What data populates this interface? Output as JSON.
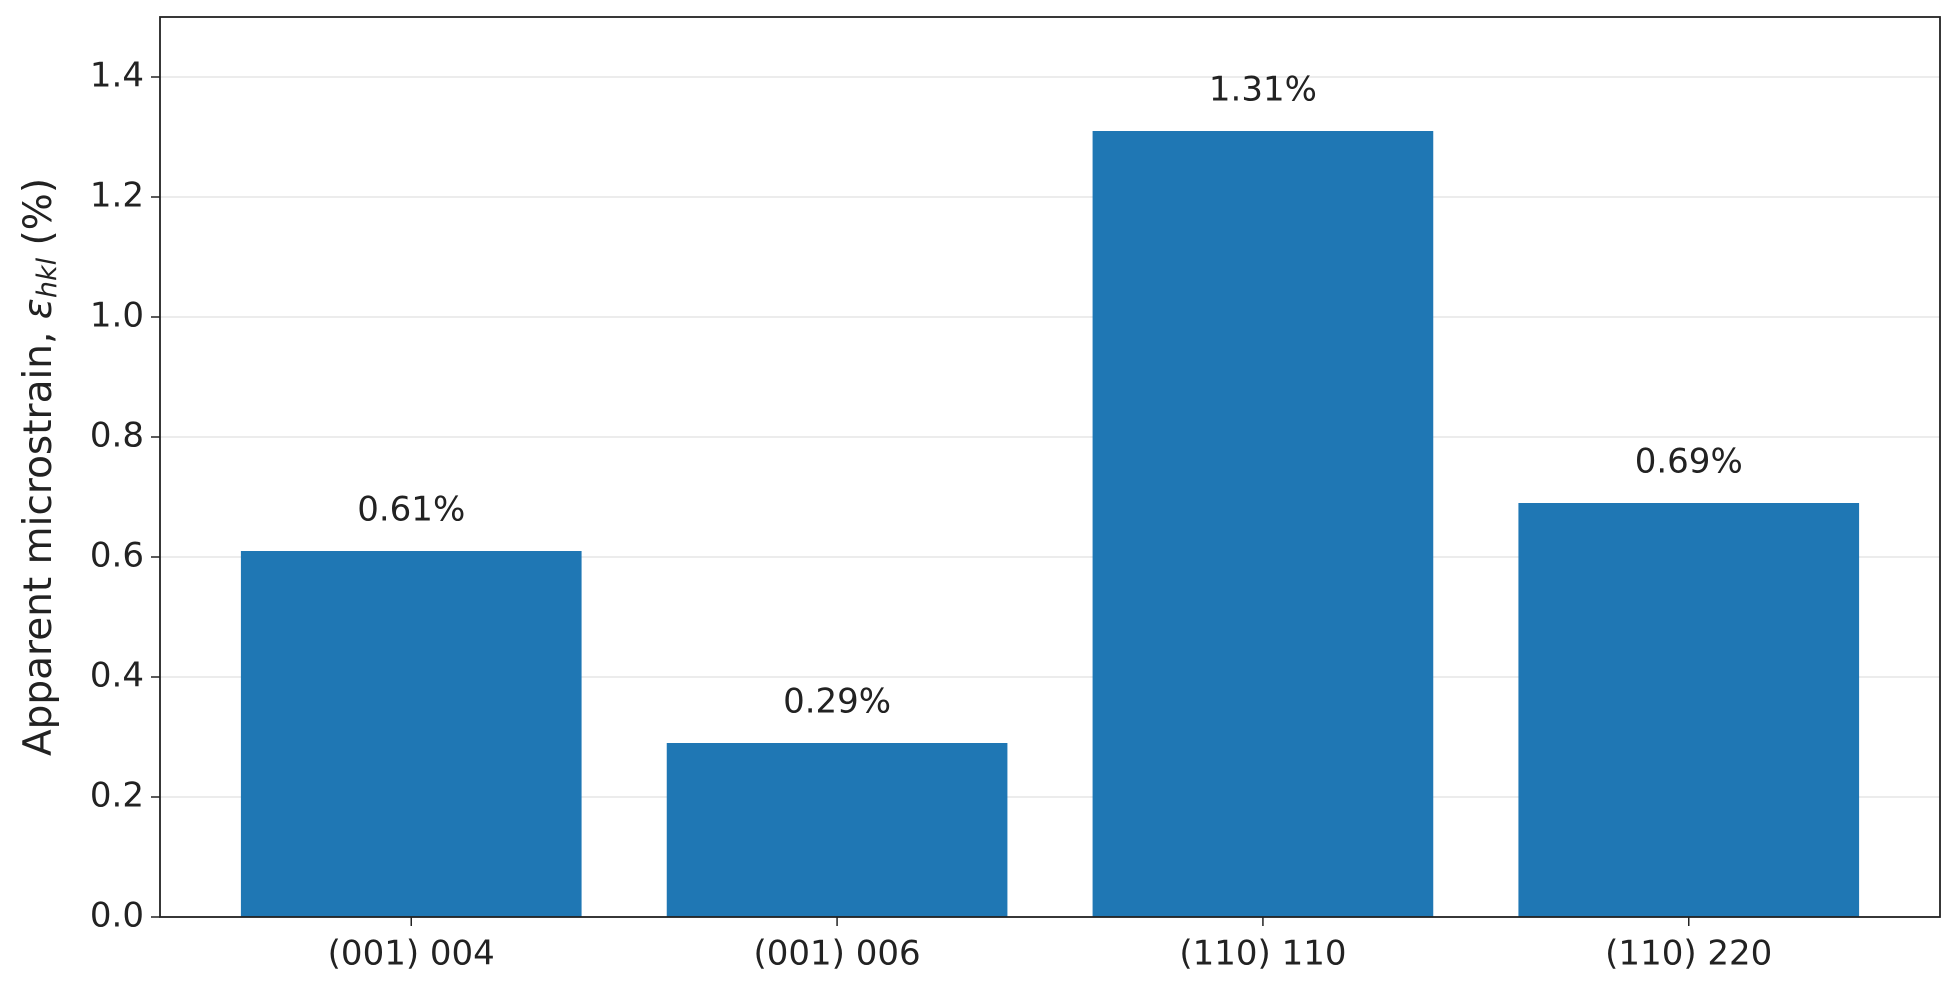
{
  "chart_data": {
    "type": "bar",
    "y_label": [
      "Apparent microstrain, ",
      "ε",
      "hkl",
      " (%)"
    ],
    "categories": [
      "(001) 004",
      "(001) 006",
      "(110) 110",
      "(110) 220"
    ],
    "values": [
      0.61,
      0.29,
      1.31,
      0.69
    ],
    "value_labels": [
      "0.61%",
      "0.29%",
      "1.31%",
      "0.69%"
    ],
    "color": "#1f77b4",
    "ylim": [
      0,
      1.5
    ],
    "yticks": [
      {
        "value": 0,
        "label": "0.0"
      },
      0.2,
      0.4,
      0.6,
      0.8,
      {
        "value": 1,
        "label": "1.0"
      },
      1.2,
      1.4
    ],
    "grid": true
  }
}
